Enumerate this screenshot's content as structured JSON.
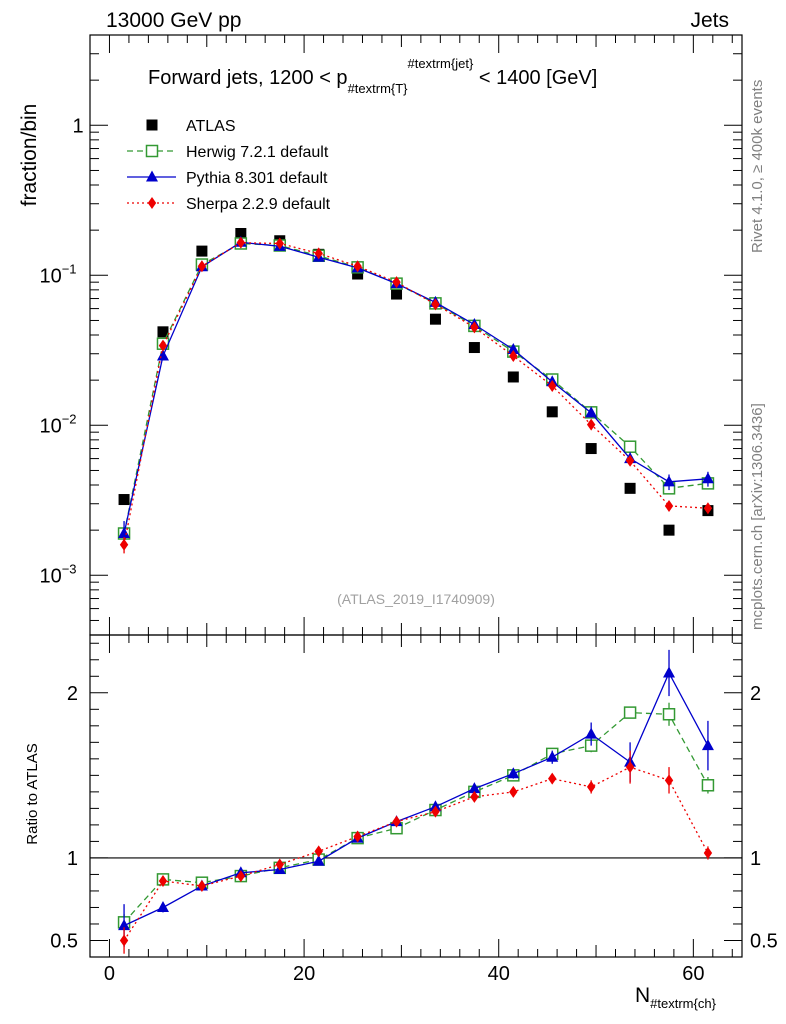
{
  "header": {
    "left": "13000 GeV pp",
    "right": "Jets"
  },
  "side_labels": {
    "rivet": "Rivet 4.1.0, ≥ 400k events",
    "source": "mcplots.cern.ch [arXiv:1306.3436]"
  },
  "chart_data": [
    {
      "type": "scatter",
      "panel": "main",
      "title_main": "Forward jets, 1200 < p",
      "title_sub": "#textrm{T}",
      "title_sup": "#textrm{jet}",
      "title_end": " < 1400 [GeV]",
      "ylabel": "fraction/bin",
      "yscale": "log",
      "ylim": [
        0.0004,
        4.0
      ],
      "xlim": [
        -2,
        65
      ],
      "yticks": [
        {
          "value": 1,
          "label": "1",
          "exp": ""
        },
        {
          "value": 0.1,
          "label": "10",
          "exp": "−1"
        },
        {
          "value": 0.01,
          "label": "10",
          "exp": "−2"
        },
        {
          "value": 0.001,
          "label": "10",
          "exp": "−3"
        }
      ],
      "watermark": "(ATLAS_2019_I1740909)",
      "x": [
        1.5,
        5.5,
        9.5,
        13.5,
        17.5,
        21.5,
        25.5,
        29.5,
        33.5,
        37.5,
        41.5,
        45.5,
        49.5,
        53.5,
        57.5,
        61.5
      ],
      "series": [
        {
          "name": "ATLAS",
          "color": "#000000",
          "marker": "square",
          "line": "none",
          "values": [
            0.0032,
            0.042,
            0.145,
            0.19,
            0.17,
            0.138,
            0.102,
            0.075,
            0.051,
            0.033,
            0.021,
            0.0123,
            0.007,
            0.0038,
            0.002,
            0.0027
          ]
        },
        {
          "name": "Herwig 7.2.1 default",
          "color": "#339933",
          "marker": "open-square",
          "line": "dashed",
          "values": [
            0.0019,
            0.035,
            0.118,
            0.163,
            0.158,
            0.135,
            0.113,
            0.088,
            0.065,
            0.046,
            0.031,
            0.0202,
            0.0122,
            0.0072,
            0.0038,
            0.0041
          ],
          "errors": [
            0.0002,
            0.001,
            0.002,
            0.002,
            0.002,
            0.002,
            0.002,
            0.001,
            0.001,
            0.001,
            0.0007,
            0.0005,
            0.0004,
            0.0003,
            0.0003,
            0.0003
          ]
        },
        {
          "name": "Pythia 8.301 default",
          "color": "#0000cc",
          "marker": "triangle",
          "line": "solid",
          "values": [
            0.0019,
            0.029,
            0.114,
            0.166,
            0.156,
            0.132,
            0.112,
            0.088,
            0.066,
            0.047,
            0.032,
            0.0195,
            0.0121,
            0.006,
            0.0042,
            0.0044
          ],
          "errors": [
            0.0004,
            0.001,
            0.002,
            0.002,
            0.002,
            0.002,
            0.002,
            0.001,
            0.001,
            0.001,
            0.0007,
            0.0006,
            0.0008,
            0.0006,
            0.0005,
            0.0005
          ]
        },
        {
          "name": "Sherpa 2.2.9 default",
          "color": "#ee0000",
          "marker": "diamond",
          "line": "dotted",
          "values": [
            0.0016,
            0.034,
            0.115,
            0.165,
            0.163,
            0.14,
            0.115,
            0.09,
            0.064,
            0.045,
            0.029,
            0.0183,
            0.0101,
            0.0058,
            0.0029,
            0.0028
          ],
          "errors": [
            0.0002,
            0.001,
            0.002,
            0.002,
            0.002,
            0.002,
            0.002,
            0.001,
            0.001,
            0.001,
            0.0006,
            0.0005,
            0.0004,
            0.0003,
            0.0002,
            0.0002
          ]
        }
      ]
    },
    {
      "type": "scatter",
      "panel": "ratio",
      "ylabel": "Ratio to ATLAS",
      "xlabel_main": "N",
      "xlabel_sub": "#textrm{ch}",
      "ylim": [
        0.4,
        2.35
      ],
      "xlim": [
        -2,
        65
      ],
      "reference": 1,
      "yticks": [
        {
          "value": 0.5,
          "label": "0.5"
        },
        {
          "value": 1,
          "label": "1"
        },
        {
          "value": 2,
          "label": "2"
        }
      ],
      "xticks": [
        {
          "value": 0,
          "label": "0"
        },
        {
          "value": 20,
          "label": "20"
        },
        {
          "value": 40,
          "label": "40"
        },
        {
          "value": 60,
          "label": "60"
        }
      ],
      "x": [
        1.5,
        5.5,
        9.5,
        13.5,
        17.5,
        21.5,
        25.5,
        29.5,
        33.5,
        37.5,
        41.5,
        45.5,
        49.5,
        53.5,
        57.5,
        61.5
      ],
      "series": [
        {
          "name": "Herwig 7.2.1 default",
          "color": "#339933",
          "marker": "open-square",
          "line": "dashed",
          "values": [
            0.61,
            0.87,
            0.85,
            0.89,
            0.94,
            0.99,
            1.12,
            1.18,
            1.29,
            1.4,
            1.5,
            1.63,
            1.68,
            1.88,
            1.87,
            1.44
          ],
          "errors": [
            0.05,
            0.02,
            0.01,
            0.01,
            0.01,
            0.01,
            0.01,
            0.01,
            0.02,
            0.02,
            0.03,
            0.03,
            0.04,
            0.03,
            0.07,
            0.05
          ]
        },
        {
          "name": "Pythia 8.301 default",
          "color": "#0000cc",
          "marker": "triangle",
          "line": "solid",
          "values": [
            0.59,
            0.7,
            0.83,
            0.91,
            0.93,
            0.98,
            1.12,
            1.22,
            1.31,
            1.42,
            1.51,
            1.61,
            1.75,
            1.58,
            2.12,
            1.68
          ],
          "errors": [
            0.13,
            0.03,
            0.01,
            0.01,
            0.01,
            0.01,
            0.01,
            0.01,
            0.02,
            0.02,
            0.03,
            0.04,
            0.07,
            0.12,
            0.14,
            0.15
          ]
        },
        {
          "name": "Sherpa 2.2.9 default",
          "color": "#ee0000",
          "marker": "diamond",
          "line": "dotted",
          "values": [
            0.5,
            0.86,
            0.83,
            0.89,
            0.96,
            1.04,
            1.13,
            1.22,
            1.28,
            1.37,
            1.4,
            1.48,
            1.43,
            1.55,
            1.47,
            1.03
          ],
          "errors": [
            0.08,
            0.02,
            0.01,
            0.01,
            0.01,
            0.01,
            0.01,
            0.01,
            0.02,
            0.02,
            0.03,
            0.03,
            0.04,
            0.1,
            0.08,
            0.04
          ]
        }
      ]
    }
  ]
}
